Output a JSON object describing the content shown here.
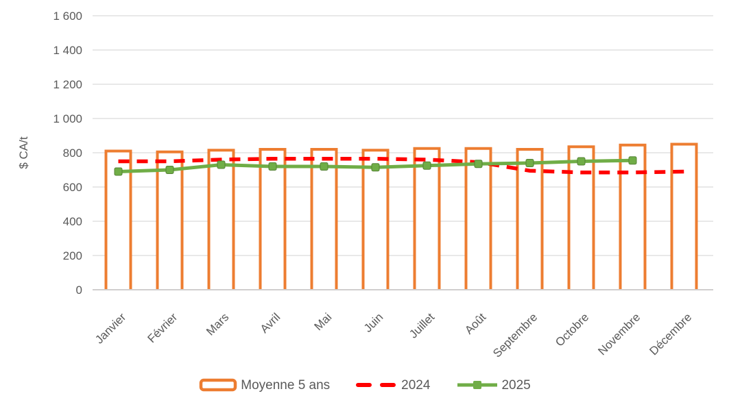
{
  "chart_data": {
    "type": "bar",
    "subtype": "combo-outline-bar-with-lines",
    "title": "",
    "xlabel": "",
    "ylabel": "$ CA/t",
    "categories": [
      "Janvier",
      "Février",
      "Mars",
      "Avril",
      "Mai",
      "Juin",
      "Juillet",
      "Août",
      "Septembre",
      "Octobre",
      "Novembre",
      "Décembre"
    ],
    "y_axis": {
      "min": 0,
      "max": 1600,
      "step": 200,
      "tick_labels": [
        "0",
        "200",
        "400",
        "600",
        "800",
        "1 000",
        "1 200",
        "1 400",
        "1 600"
      ]
    },
    "grid": true,
    "legend_position": "bottom",
    "series": [
      {
        "name": "Moyenne 5 ans",
        "type": "bar-outline",
        "color": "#ED7D31",
        "fill": "#FFFFFF",
        "values": [
          810,
          805,
          815,
          820,
          820,
          815,
          825,
          825,
          820,
          835,
          845,
          850
        ]
      },
      {
        "name": "2024",
        "type": "dashed-line",
        "color": "#FF0000",
        "values": [
          750,
          750,
          760,
          765,
          765,
          765,
          760,
          745,
          695,
          685,
          685,
          690
        ]
      },
      {
        "name": "2025",
        "type": "line-square-markers",
        "color": "#70AD47",
        "marker_border": "#548235",
        "values": [
          690,
          700,
          730,
          720,
          720,
          715,
          725,
          735,
          740,
          750,
          755,
          null
        ]
      }
    ],
    "colors": {
      "grid": "#D9D9D9",
      "axis_line": "#D0CECE",
      "text": "#595959",
      "background": "#FFFFFF"
    }
  }
}
